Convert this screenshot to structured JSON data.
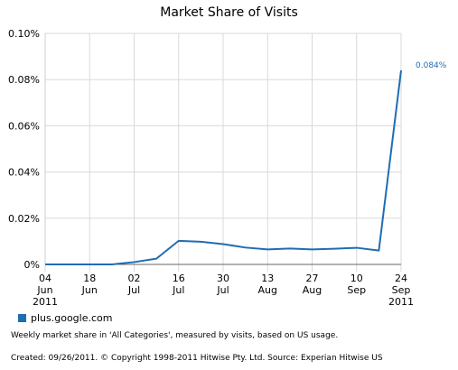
{
  "chart_data": {
    "type": "line",
    "title": "Market Share of Visits",
    "x": [
      "2011-06-04",
      "2011-06-11",
      "2011-06-18",
      "2011-06-25",
      "2011-07-02",
      "2011-07-09",
      "2011-07-16",
      "2011-07-23",
      "2011-07-30",
      "2011-08-06",
      "2011-08-13",
      "2011-08-20",
      "2011-08-27",
      "2011-09-03",
      "2011-09-10",
      "2011-09-17",
      "2011-09-24"
    ],
    "x_tick_labels": [
      {
        "lines": [
          "04",
          "Jun",
          "2011"
        ]
      },
      {
        "lines": [
          "18",
          "Jun"
        ]
      },
      {
        "lines": [
          "02",
          "Jul"
        ]
      },
      {
        "lines": [
          "16",
          "Jul"
        ]
      },
      {
        "lines": [
          "30",
          "Jul"
        ]
      },
      {
        "lines": [
          "13",
          "Aug"
        ]
      },
      {
        "lines": [
          "27",
          "Aug"
        ]
      },
      {
        "lines": [
          "10",
          "Sep"
        ]
      },
      {
        "lines": [
          "24",
          "Sep",
          "2011"
        ]
      }
    ],
    "series": [
      {
        "name": "plus.google.com",
        "color": "#1f6db3",
        "values": [
          0,
          0,
          0,
          0,
          0.001,
          0.0025,
          0.0102,
          0.0098,
          0.0088,
          0.0073,
          0.0065,
          0.0069,
          0.0065,
          0.0068,
          0.0072,
          0.006,
          0.084
        ],
        "end_label": "0.084%"
      }
    ],
    "y_ticks": [
      "0%",
      "0.02%",
      "0.04%",
      "0.06%",
      "0.08%",
      "0.10%"
    ],
    "ylim": [
      0,
      0.1
    ],
    "y_unit": "%",
    "grid": true
  },
  "legend": {
    "label": "plus.google.com",
    "color": "#1f6db3"
  },
  "footnote": "Weekly market share in 'All Categories', measured by visits, based on US usage.",
  "created": "Created: 09/26/2011. © Copyright 1998-2011 Hitwise Pty. Ltd.    Source: Experian Hitwise US"
}
